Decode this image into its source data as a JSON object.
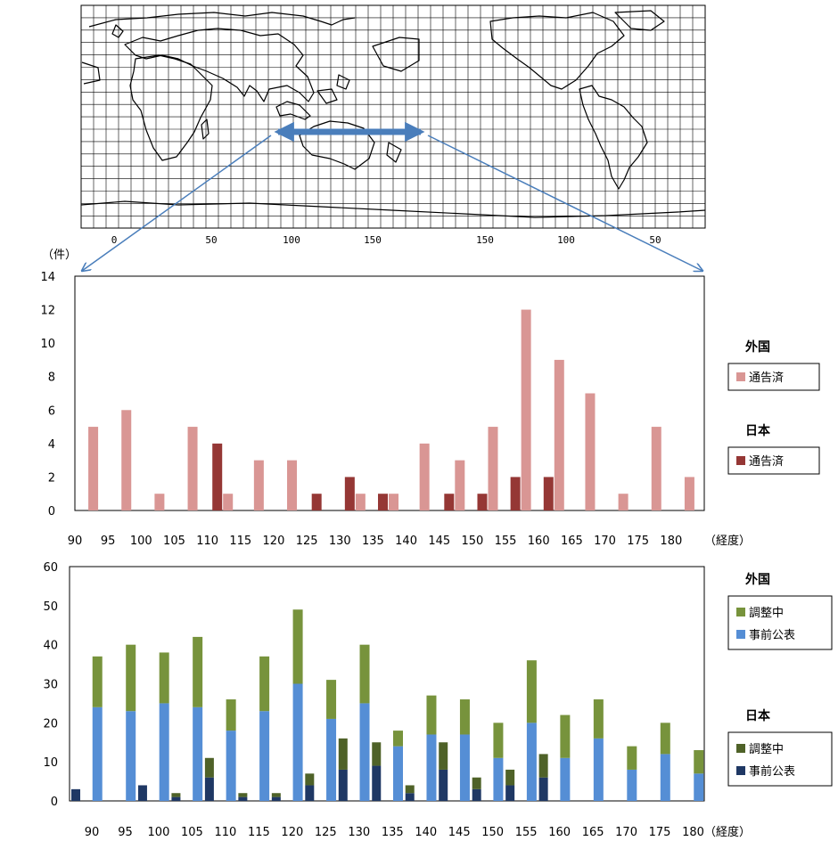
{
  "map": {
    "tick_labels": [
      "0",
      "50",
      "100",
      "150",
      "150",
      "100",
      "50"
    ]
  },
  "chart_data": [
    {
      "type": "bar",
      "unit_label": "（件）",
      "xlabel": "（経度）",
      "ylim": [
        0,
        14
      ],
      "yticks": [
        0,
        2,
        4,
        6,
        8,
        10,
        12,
        14
      ],
      "categories": [
        "90",
        "95",
        "100",
        "105",
        "110",
        "115",
        "120",
        "125",
        "130",
        "135",
        "140",
        "145",
        "150",
        "155",
        "160",
        "165",
        "170",
        "175",
        "180"
      ],
      "series": [
        {
          "name": "通告済",
          "group": "日本",
          "color": "#953735",
          "values": [
            0,
            0,
            0,
            0,
            4,
            0,
            0,
            1,
            2,
            1,
            0,
            1,
            1,
            2,
            2,
            0,
            0,
            0,
            0
          ]
        },
        {
          "name": "通告済",
          "group": "外国",
          "color": "#d99694",
          "values": [
            5,
            6,
            1,
            5,
            1,
            3,
            3,
            0,
            1,
            1,
            4,
            3,
            5,
            12,
            9,
            7,
            1,
            5,
            2
          ]
        }
      ],
      "legend": [
        {
          "heading": "外国",
          "items": [
            {
              "label": "通告済",
              "color": "#d99694"
            }
          ]
        },
        {
          "heading": "日本",
          "items": [
            {
              "label": "通告済",
              "color": "#953735"
            }
          ]
        }
      ]
    },
    {
      "type": "bar",
      "stacked": true,
      "xlabel": "（経度）",
      "ylim": [
        0,
        60
      ],
      "yticks": [
        0,
        10,
        20,
        30,
        40,
        50,
        60
      ],
      "categories": [
        "90",
        "95",
        "100",
        "105",
        "110",
        "115",
        "120",
        "125",
        "130",
        "135",
        "140",
        "145",
        "150",
        "155",
        "160",
        "165",
        "170",
        "175",
        "180"
      ],
      "stacks": [
        {
          "group": "日本",
          "segments": [
            {
              "name": "事前公表",
              "color": "#1f3864",
              "values": [
                3,
                0,
                4,
                1,
                6,
                1,
                1,
                4,
                8,
                9,
                2,
                8,
                3,
                4,
                6,
                0,
                0,
                0,
                0
              ]
            },
            {
              "name": "調整中",
              "color": "#4f6228",
              "values": [
                0,
                0,
                0,
                1,
                5,
                1,
                1,
                3,
                8,
                6,
                2,
                7,
                3,
                4,
                6,
                0,
                0,
                0,
                0
              ]
            }
          ]
        },
        {
          "group": "外国",
          "segments": [
            {
              "name": "事前公表",
              "color": "#558ed5",
              "values": [
                24,
                23,
                25,
                24,
                18,
                23,
                30,
                21,
                25,
                14,
                17,
                17,
                11,
                20,
                11,
                16,
                8,
                12,
                7
              ]
            },
            {
              "name": "調整中",
              "color": "#77933c",
              "values": [
                13,
                17,
                13,
                18,
                8,
                14,
                19,
                10,
                15,
                4,
                10,
                9,
                9,
                16,
                11,
                10,
                6,
                8,
                6
              ]
            }
          ]
        }
      ],
      "legend": [
        {
          "heading": "外国",
          "items": [
            {
              "label": "調整中",
              "color": "#77933c"
            },
            {
              "label": "事前公表",
              "color": "#558ed5"
            }
          ]
        },
        {
          "heading": "日本",
          "items": [
            {
              "label": "調整中",
              "color": "#4f6228"
            },
            {
              "label": "事前公表",
              "color": "#1f3864"
            }
          ]
        }
      ]
    }
  ]
}
